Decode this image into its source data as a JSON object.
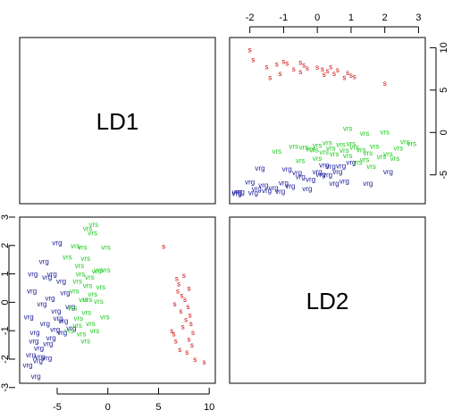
{
  "chart_data": {
    "type": "scatter",
    "variables": [
      "LD1",
      "LD2"
    ],
    "ld1_ticks": [
      -5,
      0,
      5,
      10
    ],
    "ld1_top_ticks": [
      -2,
      -1,
      0,
      1,
      2,
      3
    ],
    "ld2_ticks": [
      -3,
      -2,
      -1,
      0,
      1,
      2,
      3
    ],
    "ld2_right_ticks": [
      -5,
      0,
      5,
      10
    ],
    "ld1_top_range": [
      -2.6,
      3.2
    ],
    "ld2_right_range": [
      -8.4,
      11.2
    ],
    "ld1_range": [
      -8.7,
      10.6
    ],
    "ld2_range": [
      -2.85,
      3.0
    ],
    "upper": {
      "s": [
        [
          -2,
          9.8
        ],
        [
          -1.9,
          8.6
        ],
        [
          -1.5,
          7.8
        ],
        [
          -1.2,
          8.1
        ],
        [
          -1,
          8.4
        ],
        [
          -0.9,
          8.2
        ],
        [
          -0.7,
          7.5
        ],
        [
          -0.5,
          8.3
        ],
        [
          -0.4,
          8.0
        ],
        [
          -0.3,
          7.6
        ],
        [
          0,
          7.7
        ],
        [
          0.15,
          7.5
        ],
        [
          0.3,
          7.3
        ],
        [
          0.4,
          7.8
        ],
        [
          0.5,
          7.0
        ],
        [
          0.6,
          7.4
        ],
        [
          0.8,
          6.5
        ],
        [
          0.9,
          7.1
        ],
        [
          1.0,
          6.8
        ],
        [
          1.1,
          6.6
        ],
        [
          -1.4,
          6.5
        ],
        [
          -1.1,
          7.0
        ],
        [
          -0.5,
          7.2
        ],
        [
          0.2,
          6.9
        ],
        [
          2.0,
          5.8
        ]
      ],
      "vrs": [
        [
          0.9,
          0.5
        ],
        [
          1.0,
          -1.3
        ],
        [
          1.4,
          -0.1
        ],
        [
          2.0,
          0.1
        ],
        [
          2.8,
          -1.3
        ],
        [
          -1.2,
          -2.2
        ],
        [
          -0.4,
          -1.7
        ],
        [
          -0.2,
          -1.9
        ],
        [
          0,
          -1.5
        ],
        [
          0.2,
          -2.3
        ],
        [
          0.3,
          -1.2
        ],
        [
          0.4,
          -1.8
        ],
        [
          0.5,
          -2.5
        ],
        [
          0.7,
          -1.4
        ],
        [
          0.8,
          -2.1
        ],
        [
          1.1,
          -1.7
        ],
        [
          1.3,
          -2.0
        ],
        [
          1.5,
          -2.4
        ],
        [
          1.7,
          -1.6
        ],
        [
          1.9,
          -2.8
        ],
        [
          2.1,
          -2.5
        ],
        [
          2.3,
          -3.0
        ],
        [
          2.6,
          -1.1
        ],
        [
          -0.7,
          -1.6
        ],
        [
          -0.5,
          -3.3
        ],
        [
          0,
          -3.0
        ],
        [
          0.9,
          -2.7
        ],
        [
          1.2,
          -3.5
        ],
        [
          1.6,
          -4.0
        ],
        [
          -0.1,
          -2.0
        ],
        [
          2.4,
          -1.8
        ],
        [
          1.4,
          -3.2
        ]
      ],
      "vrg": [
        [
          -2.0,
          -5.8
        ],
        [
          -1.7,
          -4.2
        ],
        [
          -1.5,
          -6.8
        ],
        [
          -1.0,
          -5.9
        ],
        [
          -0.9,
          -4.3
        ],
        [
          -0.5,
          -5.2
        ],
        [
          -0.3,
          -6.6
        ],
        [
          0,
          -4.6
        ],
        [
          0.2,
          -3.8
        ],
        [
          0.3,
          -5.0
        ],
        [
          0.5,
          -6.0
        ],
        [
          0.6,
          -4.6
        ],
        [
          0.8,
          -5.7
        ],
        [
          1.0,
          -3.5
        ],
        [
          1.5,
          -6.0
        ],
        [
          2.1,
          -4.6
        ],
        [
          -2.3,
          -7.0
        ],
        [
          -2.5,
          -7.2
        ],
        [
          -2.8,
          -7.0
        ],
        [
          -1.9,
          -7.1
        ],
        [
          -1.6,
          -6.2
        ],
        [
          -1.3,
          -6.5
        ],
        [
          -1.1,
          -6.9
        ],
        [
          -0.8,
          -6.3
        ],
        [
          -0.2,
          -5.5
        ],
        [
          0.1,
          -4.9
        ],
        [
          0.4,
          -4.0
        ],
        [
          0.7,
          -3.9
        ],
        [
          -1.8,
          -6.6
        ],
        [
          -0.6,
          -4.7
        ]
      ]
    },
    "lower": {
      "s": [
        [
          5.5,
          1.98
        ],
        [
          6.8,
          0.85
        ],
        [
          7.5,
          0.95
        ],
        [
          7.0,
          0.65
        ],
        [
          8.0,
          0.5
        ],
        [
          6.9,
          0.4
        ],
        [
          7.3,
          0.25
        ],
        [
          7.6,
          0.1
        ],
        [
          6.6,
          -0.05
        ],
        [
          7.9,
          -0.15
        ],
        [
          7.2,
          -0.3
        ],
        [
          8.1,
          -0.45
        ],
        [
          6.3,
          -1.0
        ],
        [
          7.4,
          -0.85
        ],
        [
          8.2,
          -0.75
        ],
        [
          7.7,
          -0.6
        ],
        [
          8.4,
          -1.05
        ],
        [
          6.7,
          -1.35
        ],
        [
          8.0,
          -1.3
        ],
        [
          7.1,
          -1.65
        ],
        [
          8.3,
          -1.5
        ],
        [
          7.8,
          -1.75
        ],
        [
          8.6,
          -2.0
        ],
        [
          9.5,
          -2.1
        ],
        [
          6.5,
          -1.1
        ]
      ],
      "vrs": [
        [
          -1.4,
          2.75
        ],
        [
          -2.0,
          2.6
        ],
        [
          -1.5,
          2.45
        ],
        [
          -3.2,
          2.0
        ],
        [
          -2.5,
          1.95
        ],
        [
          -0.2,
          1.95
        ],
        [
          -4.0,
          1.6
        ],
        [
          -2.2,
          1.55
        ],
        [
          -0.2,
          1.15
        ],
        [
          -2.8,
          1.3
        ],
        [
          -1.8,
          0.9
        ],
        [
          -3.0,
          0.75
        ],
        [
          -2.0,
          0.6
        ],
        [
          -3.3,
          0.4
        ],
        [
          -1.5,
          0.3
        ],
        [
          -2.4,
          0.1
        ],
        [
          -0.9,
          0.05
        ],
        [
          -3.5,
          -0.2
        ],
        [
          -2.1,
          -0.35
        ],
        [
          -0.3,
          -0.5
        ],
        [
          -2.9,
          -0.55
        ],
        [
          -1.7,
          -0.75
        ],
        [
          -3.8,
          -1.0
        ],
        [
          -2.6,
          -1.1
        ],
        [
          -1.3,
          -1.0
        ],
        [
          -2.2,
          -1.35
        ],
        [
          -0.7,
          0.55
        ],
        [
          -2.7,
          1.0
        ],
        [
          -1.1,
          1.1
        ],
        [
          -0.9,
          1.15
        ],
        [
          -3.0,
          -0.8
        ],
        [
          -2.0,
          0.1
        ]
      ],
      "vrg": [
        [
          -5.0,
          2.1
        ],
        [
          -6.3,
          1.45
        ],
        [
          -7.4,
          1.0
        ],
        [
          -6.0,
          0.9
        ],
        [
          -5.5,
          1.0
        ],
        [
          -4.6,
          0.75
        ],
        [
          -7.5,
          0.4
        ],
        [
          -5.7,
          0.15
        ],
        [
          -4.2,
          0.35
        ],
        [
          -6.5,
          -0.05
        ],
        [
          -3.7,
          -0.15
        ],
        [
          -7.8,
          -0.5
        ],
        [
          -5.1,
          -0.3
        ],
        [
          -6.2,
          -0.75
        ],
        [
          -4.4,
          -0.65
        ],
        [
          -7.2,
          -1.05
        ],
        [
          -5.6,
          -1.25
        ],
        [
          -6.8,
          -1.6
        ],
        [
          -7.9,
          -2.2
        ],
        [
          -6.7,
          -1.9
        ],
        [
          -7.6,
          -1.85
        ],
        [
          -6.0,
          -1.95
        ],
        [
          -5.2,
          -0.95
        ],
        [
          -4.5,
          -1.05
        ],
        [
          -3.6,
          -0.9
        ],
        [
          -6.9,
          -2.05
        ],
        [
          -7.1,
          -2.6
        ],
        [
          -7.3,
          -1.35
        ],
        [
          -5.9,
          -1.45
        ],
        [
          -4.9,
          -0.55
        ]
      ]
    },
    "colors": {
      "s": "#cc0000",
      "vrs": "#22cc22",
      "vrg": "#1a1a99"
    }
  }
}
